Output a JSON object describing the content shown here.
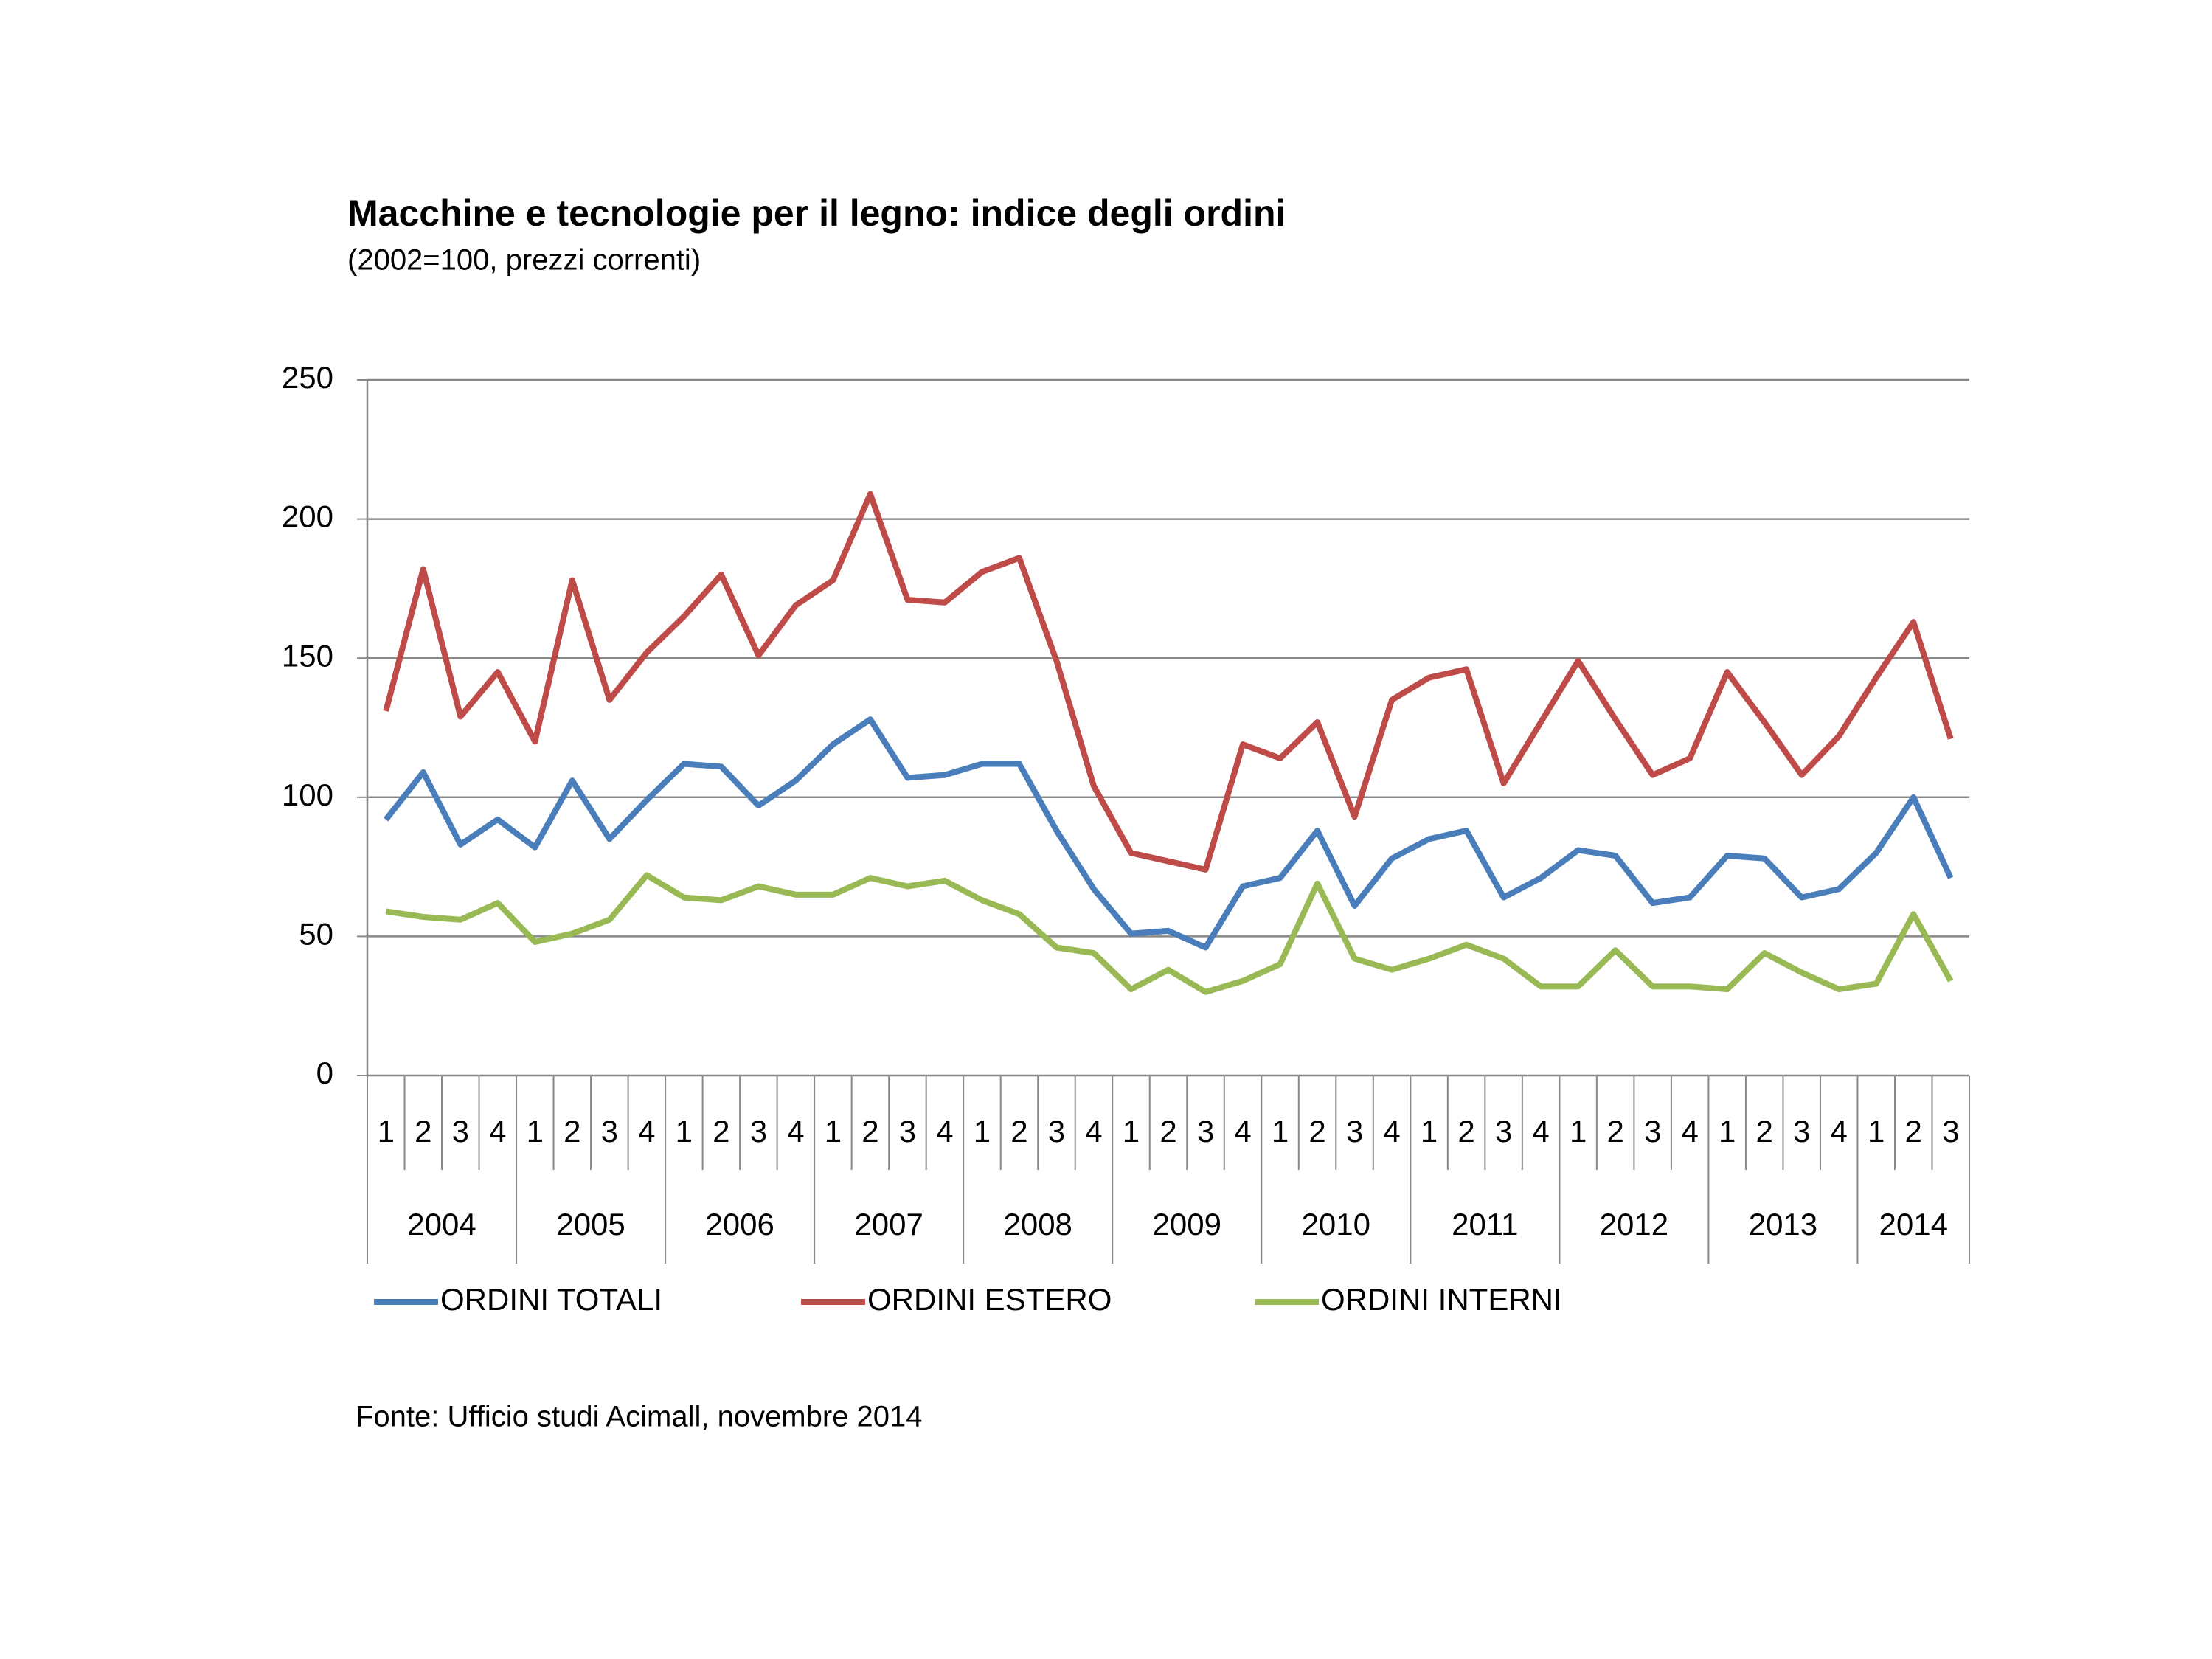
{
  "chart_data": {
    "type": "line",
    "title": "Macchine e tecnologie per il legno: indice degli ordini",
    "subtitle": "(2002=100, prezzi correnti)",
    "source": "Fonte: Ufficio studi Acimall, novembre 2014",
    "categories": [
      [
        "2004",
        "1"
      ],
      [
        "2004",
        "2"
      ],
      [
        "2004",
        "3"
      ],
      [
        "2004",
        "4"
      ],
      [
        "2005",
        "1"
      ],
      [
        "2005",
        "2"
      ],
      [
        "2005",
        "3"
      ],
      [
        "2005",
        "4"
      ],
      [
        "2006",
        "1"
      ],
      [
        "2006",
        "2"
      ],
      [
        "2006",
        "3"
      ],
      [
        "2006",
        "4"
      ],
      [
        "2007",
        "1"
      ],
      [
        "2007",
        "2"
      ],
      [
        "2007",
        "3"
      ],
      [
        "2007",
        "4"
      ],
      [
        "2008",
        "1"
      ],
      [
        "2008",
        "2"
      ],
      [
        "2008",
        "3"
      ],
      [
        "2008",
        "4"
      ],
      [
        "2009",
        "1"
      ],
      [
        "2009",
        "2"
      ],
      [
        "2009",
        "3"
      ],
      [
        "2009",
        "4"
      ],
      [
        "2010",
        "1"
      ],
      [
        "2010",
        "2"
      ],
      [
        "2010",
        "3"
      ],
      [
        "2010",
        "4"
      ],
      [
        "2011",
        "1"
      ],
      [
        "2011",
        "2"
      ],
      [
        "2011",
        "3"
      ],
      [
        "2011",
        "4"
      ],
      [
        "2012",
        "1"
      ],
      [
        "2012",
        "2"
      ],
      [
        "2012",
        "3"
      ],
      [
        "2012",
        "4"
      ],
      [
        "2013",
        "1"
      ],
      [
        "2013",
        "2"
      ],
      [
        "2013",
        "3"
      ],
      [
        "2013",
        "4"
      ],
      [
        "2014",
        "1"
      ],
      [
        "2014",
        "2"
      ],
      [
        "2014",
        "3"
      ]
    ],
    "series": [
      {
        "name": "ORDINI TOTALI",
        "color": "#4a7ebb",
        "values": [
          92,
          109,
          83,
          92,
          82,
          106,
          85,
          99,
          112,
          111,
          97,
          106,
          119,
          128,
          107,
          108,
          112,
          112,
          88,
          67,
          51,
          52,
          46,
          68,
          71,
          88,
          61,
          78,
          85,
          88,
          64,
          71,
          81,
          79,
          62,
          64,
          79,
          78,
          64,
          67,
          80,
          100,
          71
        ]
      },
      {
        "name": "ORDINI ESTERO",
        "color": "#be4b48",
        "values": [
          131,
          182,
          129,
          145,
          120,
          178,
          135,
          152,
          165,
          180,
          151,
          169,
          178,
          209,
          171,
          170,
          181,
          186,
          149,
          104,
          80,
          77,
          74,
          119,
          114,
          127,
          93,
          135,
          143,
          146,
          105,
          127,
          149,
          128,
          108,
          114,
          145,
          127,
          108,
          122,
          143,
          163,
          121
        ]
      },
      {
        "name": "ORDINI INTERNI",
        "color": "#98b954",
        "values": [
          59,
          57,
          56,
          62,
          48,
          51,
          56,
          72,
          64,
          63,
          68,
          65,
          65,
          71,
          68,
          70,
          63,
          58,
          46,
          44,
          31,
          38,
          30,
          34,
          40,
          69,
          42,
          38,
          42,
          47,
          42,
          32,
          32,
          45,
          32,
          32,
          31,
          44,
          37,
          31,
          33,
          58,
          34
        ]
      }
    ],
    "ylim": [
      0,
      250
    ],
    "yticks": [
      0,
      50,
      100,
      150,
      200,
      250
    ],
    "grid": true,
    "legend": "bottom"
  }
}
